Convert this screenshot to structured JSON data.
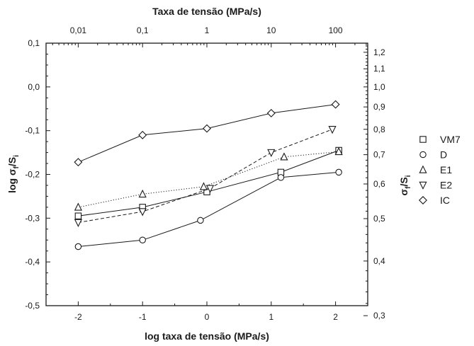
{
  "chart_data": {
    "type": "line",
    "xlabel": "log taxa de tensão (MPa/s)",
    "ylabel": "log σf/Si",
    "top_xlabel": "Taxa de tensão (MPa/s)",
    "right_ylabel": "σf/Si",
    "xlim": [
      -2.5,
      2.5
    ],
    "ylim": [
      -0.5,
      0.1
    ],
    "x_ticks": [
      -2,
      -1,
      0,
      1,
      2
    ],
    "x_tick_labels": [
      "-2",
      "-1",
      "0",
      "1",
      "2"
    ],
    "y_ticks": [
      -0.5,
      -0.4,
      -0.3,
      -0.2,
      -0.1,
      0.0,
      0.1
    ],
    "y_tick_labels": [
      "-0,5",
      "-0,4",
      "-0,3",
      "-0,2",
      "-0,1",
      "0,0",
      "0,1"
    ],
    "top_ticks": [
      0.01,
      0.1,
      1,
      10,
      100
    ],
    "top_tick_labels": [
      "0,01",
      "0,1",
      "1",
      "10",
      "100"
    ],
    "right_ticks": [
      0.3,
      0.4,
      0.5,
      0.6,
      0.7,
      0.8,
      0.9,
      1.0,
      1.1,
      1.2
    ],
    "right_tick_labels": [
      "0,3",
      "0,4",
      "0,5",
      "0,6",
      "0,7",
      "0,8",
      "0,9",
      "1,0",
      "1,1",
      "1,2"
    ],
    "legend_position": "right",
    "grid": false,
    "series": [
      {
        "name": "VM7",
        "marker": "square",
        "line": "solid",
        "x": [
          -2,
          -1,
          0,
          1.15,
          2.05
        ],
        "y": [
          -0.295,
          -0.275,
          -0.24,
          -0.195,
          -0.145
        ]
      },
      {
        "name": "D",
        "marker": "circle",
        "line": "solid",
        "x": [
          -2,
          -1,
          -0.1,
          1.15,
          2.05
        ],
        "y": [
          -0.365,
          -0.35,
          -0.305,
          -0.207,
          -0.195
        ]
      },
      {
        "name": "E1",
        "marker": "triangle-up",
        "line": "dotted",
        "x": [
          -2,
          -1,
          -0.05,
          1.2,
          2.05
        ],
        "y": [
          -0.275,
          -0.245,
          -0.228,
          -0.16,
          -0.148
        ]
      },
      {
        "name": "E2",
        "marker": "triangle-down",
        "line": "dashed",
        "x": [
          -2,
          -1,
          0.05,
          1,
          1.95
        ],
        "y": [
          -0.31,
          -0.285,
          -0.232,
          -0.15,
          -0.097
        ]
      },
      {
        "name": "IC",
        "marker": "diamond",
        "line": "solid",
        "x": [
          -2,
          -1,
          0,
          1,
          2
        ],
        "y": [
          -0.172,
          -0.11,
          -0.095,
          -0.06,
          -0.04
        ]
      }
    ]
  }
}
